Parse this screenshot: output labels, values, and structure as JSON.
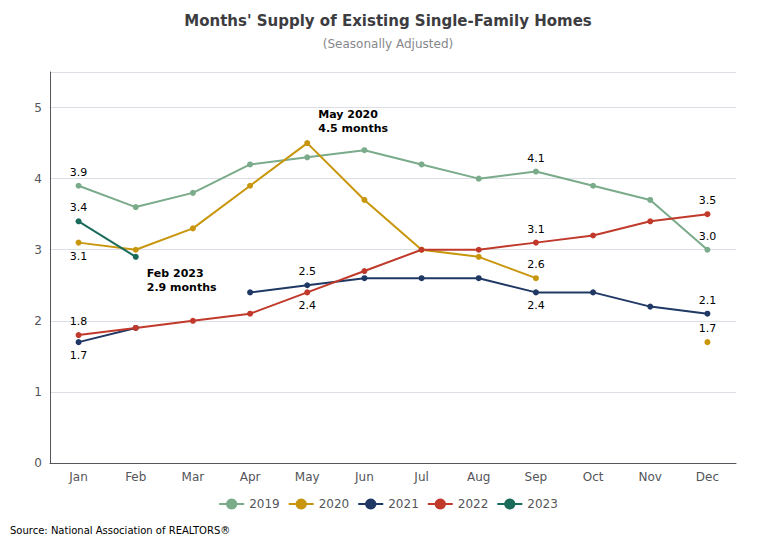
{
  "chart_data": {
    "type": "line",
    "title": "Months' Supply of Existing Single-Family Homes",
    "subtitle": "(Seasonally Adjusted)",
    "source": "Source: National Association of REALTORS®",
    "categories": [
      "Jan",
      "Feb",
      "Mar",
      "Apr",
      "May",
      "Jun",
      "Jul",
      "Aug",
      "Sep",
      "Oct",
      "Nov",
      "Dec"
    ],
    "series": [
      {
        "name": "2019",
        "color": "#7aab8a",
        "values": [
          3.9,
          3.6,
          3.8,
          4.2,
          4.3,
          4.4,
          4.2,
          4.0,
          4.1,
          3.9,
          3.7,
          3.0
        ],
        "value_labels": [
          "3.9",
          null,
          null,
          null,
          null,
          null,
          null,
          null,
          "4.1",
          null,
          null,
          "3.0"
        ]
      },
      {
        "name": "2020",
        "color": "#c8960c",
        "values": [
          3.1,
          3.0,
          3.3,
          3.9,
          4.5,
          3.7,
          3.0,
          2.9,
          2.6,
          null,
          null,
          1.7
        ],
        "value_labels": [
          "3.1",
          null,
          null,
          null,
          null,
          null,
          null,
          null,
          "2.6",
          null,
          null,
          "1.7"
        ]
      },
      {
        "name": "2021",
        "color": "#1f3864",
        "values": [
          1.7,
          1.9,
          null,
          2.4,
          2.5,
          2.6,
          2.6,
          2.6,
          2.4,
          2.4,
          2.2,
          2.1
        ],
        "value_labels": [
          "1.7",
          null,
          null,
          null,
          "2.5",
          null,
          null,
          null,
          "2.4",
          null,
          null,
          "2.1"
        ]
      },
      {
        "name": "2022",
        "color": "#c0392b",
        "values": [
          1.8,
          1.9,
          2.0,
          2.1,
          2.4,
          2.7,
          3.0,
          3.0,
          3.1,
          3.2,
          3.4,
          3.5
        ],
        "value_labels": [
          "1.8",
          null,
          null,
          null,
          "2.4",
          null,
          null,
          null,
          "3.1",
          null,
          null,
          "3.5"
        ]
      },
      {
        "name": "2023",
        "color": "#1a6b5a",
        "values": [
          3.4,
          2.9,
          null,
          null,
          null,
          null,
          null,
          null,
          null,
          null,
          null,
          null
        ],
        "value_labels": [
          "3.4",
          null,
          null,
          null,
          null,
          null,
          null,
          null,
          null,
          null,
          null,
          null
        ]
      }
    ],
    "annotations": [
      {
        "text": "May 2020\n4.5 months",
        "x": "May",
        "y": 4.5
      },
      {
        "text": "Feb 2023\n2.9 months",
        "x": "Feb",
        "y": 2.9
      }
    ],
    "ylim": [
      0,
      5.5
    ],
    "yticks": [
      0,
      1,
      2,
      3,
      4,
      5
    ],
    "grid": true,
    "legend": "bottom",
    "marker": "circle",
    "line_style": "solid"
  }
}
